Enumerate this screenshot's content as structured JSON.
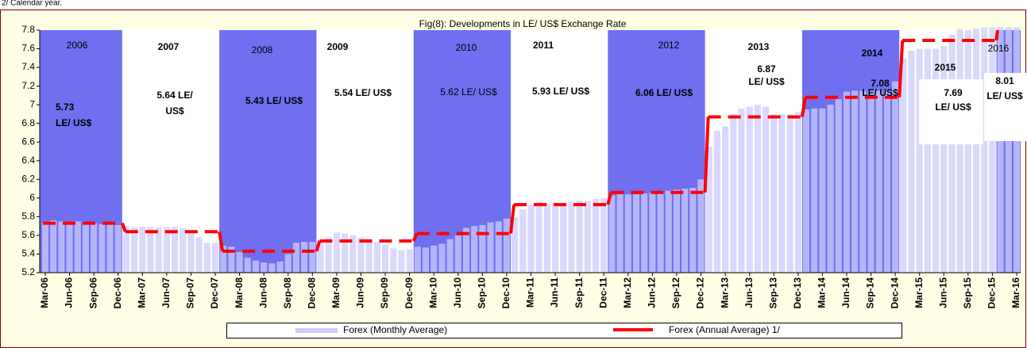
{
  "note": "2/ Calendar year.",
  "chart_data": {
    "type": "bar",
    "title": "Fig(8): Developments in LE/ US$ Exchange Rate",
    "categories": [
      "Mar-06",
      null,
      null,
      "Jun-06",
      null,
      null,
      "Sep-06",
      null,
      null,
      "Dec-06",
      null,
      null,
      "Mar-07",
      null,
      null,
      "Jun-07",
      null,
      null,
      "Sep-07",
      null,
      null,
      "Dec-07",
      null,
      null,
      "Mar-08",
      null,
      null,
      "Jun-08",
      null,
      null,
      "Sep-08",
      null,
      null,
      "Dec-08",
      null,
      null,
      "Mar-09",
      null,
      null,
      "Jun-09",
      null,
      null,
      "Sep-09",
      null,
      null,
      "Dec-09",
      null,
      null,
      "Mar-10",
      null,
      null,
      "Jun-10",
      null,
      null,
      "Sep-10",
      null,
      null,
      "Dec-10",
      null,
      null,
      "Mar-11",
      null,
      null,
      "Jun-11",
      null,
      null,
      "Sep-11",
      null,
      null,
      "Dec-11",
      null,
      null,
      "Mar-12",
      null,
      null,
      "Jun-12",
      null,
      null,
      "Sep-12",
      null,
      null,
      "Dec-12",
      null,
      null,
      "Mar-13",
      null,
      null,
      "Jun-13",
      null,
      null,
      "Sep-13",
      null,
      null,
      "Dec-13",
      null,
      null,
      "Mar-14",
      null,
      null,
      "Jun-14",
      null,
      null,
      "Sep-14",
      null,
      null,
      "Dec-14",
      null,
      null,
      "Mar-15",
      null,
      null,
      "Jun-15",
      null,
      null,
      "Sep-15",
      null,
      null,
      "Dec-15",
      null,
      null,
      "Mar-16"
    ],
    "series": [
      {
        "name": "Forex (Monthly Average)",
        "color": "#ccccff",
        "values": [
          5.74,
          5.76,
          5.75,
          5.74,
          5.75,
          5.73,
          5.73,
          5.72,
          5.72,
          5.71,
          5.7,
          5.69,
          5.69,
          5.69,
          5.68,
          5.69,
          5.69,
          5.68,
          5.62,
          5.58,
          5.52,
          5.52,
          5.49,
          5.48,
          5.42,
          5.36,
          5.33,
          5.31,
          5.3,
          5.32,
          5.4,
          5.52,
          5.53,
          5.53,
          5.55,
          5.58,
          5.63,
          5.62,
          5.6,
          5.58,
          5.56,
          5.53,
          5.5,
          5.46,
          5.44,
          5.45,
          5.48,
          5.47,
          5.49,
          5.51,
          5.56,
          5.6,
          5.68,
          5.7,
          5.71,
          5.74,
          5.75,
          5.78,
          5.79,
          5.88,
          5.93,
          5.96,
          5.94,
          5.95,
          5.95,
          5.96,
          5.97,
          5.97,
          5.99,
          6.0,
          6.03,
          6.04,
          6.04,
          6.04,
          6.05,
          6.06,
          6.07,
          6.08,
          6.09,
          6.1,
          6.11,
          6.2,
          6.55,
          6.72,
          6.77,
          6.9,
          6.96,
          6.98,
          7.0,
          6.98,
          6.9,
          6.9,
          6.9,
          6.92,
          6.95,
          6.96,
          6.96,
          7.0,
          7.06,
          7.14,
          7.15,
          7.15,
          7.15,
          7.15,
          7.15,
          7.25,
          7.5,
          7.58,
          7.6,
          7.6,
          7.6,
          7.63,
          7.75,
          7.81,
          7.8,
          7.82,
          7.83,
          7.83,
          7.83,
          7.83,
          7.83
        ]
      }
    ],
    "annual": {
      "name": "Forex (Annual  Average) 1/",
      "color": "#ff0000",
      "values": [
        5.73,
        5.64,
        5.43,
        5.54,
        5.62,
        5.93,
        6.06,
        6.87,
        7.08,
        7.69,
        8.01
      ]
    },
    "annotations": [
      {
        "year": "2006",
        "rate": [
          "5.73",
          "LE/ US$"
        ]
      },
      {
        "year": "2007",
        "rate": [
          "5.64  LE/",
          "US$"
        ]
      },
      {
        "year": "2008",
        "rate": [
          "5.43 LE/ US$"
        ]
      },
      {
        "year": "2009",
        "rate": [
          "5.54 LE/ US$"
        ]
      },
      {
        "year": "2010",
        "rate": [
          "5.62 LE/ US$"
        ]
      },
      {
        "year": "2011",
        "rate": [
          "5.93 LE/ US$"
        ]
      },
      {
        "year": "2012",
        "rate": [
          "6.06 LE/ US$"
        ]
      },
      {
        "year": "2013",
        "rate": [
          "6.87",
          "LE/ US$"
        ]
      },
      {
        "year": "2014",
        "rate": [
          "7.08",
          "LE/ US$"
        ]
      },
      {
        "year": "2015",
        "rate": [
          "7.69",
          "LE/ US$"
        ]
      },
      {
        "year": "2016",
        "rate": [
          "8.01",
          "LE/ US$"
        ]
      }
    ],
    "band_color": "#6f6ff0",
    "ylim": [
      5.2,
      7.8
    ],
    "yticks": [
      5.2,
      5.4,
      5.6,
      5.8,
      6,
      6.2,
      6.4,
      6.6,
      6.8,
      7,
      7.2,
      7.4,
      7.6,
      7.8
    ]
  }
}
